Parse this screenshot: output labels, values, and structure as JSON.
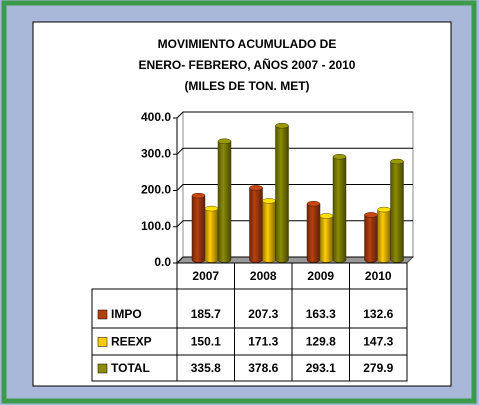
{
  "chart_data": {
    "type": "bar",
    "title_lines": [
      "MOVIMIENTO ACUMULADO DE",
      "ENERO- FEBRERO, AÑOS 2007 - 2010",
      "(MILES DE TON. MET)"
    ],
    "categories": [
      "2007",
      "2008",
      "2009",
      "2010"
    ],
    "series": [
      {
        "name": "IMPO",
        "color": "#b5400f",
        "values": [
          185.7,
          207.3,
          163.3,
          132.6
        ]
      },
      {
        "name": "REEXP",
        "color": "#ffcc00",
        "values": [
          150.1,
          171.3,
          129.8,
          147.3
        ]
      },
      {
        "name": "TOTAL",
        "color": "#8c8c00",
        "values": [
          335.8,
          378.6,
          293.1,
          279.9
        ]
      }
    ],
    "ylim": [
      0,
      400
    ],
    "yticks": [
      {
        "value": 0,
        "label": "0.0"
      },
      {
        "value": 100,
        "label": "100.0"
      },
      {
        "value": 200,
        "label": "200.0"
      },
      {
        "value": 300,
        "label": "300.0"
      },
      {
        "value": 400,
        "label": "400.0"
      }
    ],
    "grid": true,
    "data_table": true
  }
}
